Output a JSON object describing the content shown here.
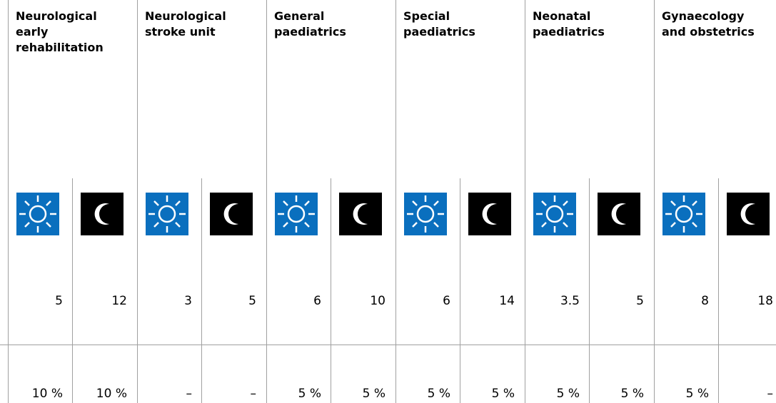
{
  "columns": [
    {
      "title": "Neurological early rehabilitation",
      "day": "5",
      "night": "12",
      "day_share": "10 %",
      "night_share": "10 %"
    },
    {
      "title": "Neurological stroke unit",
      "day": "3",
      "night": "5",
      "day_share": "–",
      "night_share": "–"
    },
    {
      "title": "General paediatrics",
      "day": "6",
      "night": "10",
      "day_share": "5 %",
      "night_share": "5 %"
    },
    {
      "title": "Special paediatrics",
      "day": "6",
      "night": "14",
      "day_share": "5 %",
      "night_share": "5 %"
    },
    {
      "title": "Neonatal paediatrics",
      "day": "3.5",
      "night": "5",
      "day_share": "5 %",
      "night_share": "5 %"
    },
    {
      "title": "Gynaecology and obstetrics",
      "day": "8",
      "night": "18",
      "day_share": "5 %",
      "night_share": "–"
    }
  ]
}
